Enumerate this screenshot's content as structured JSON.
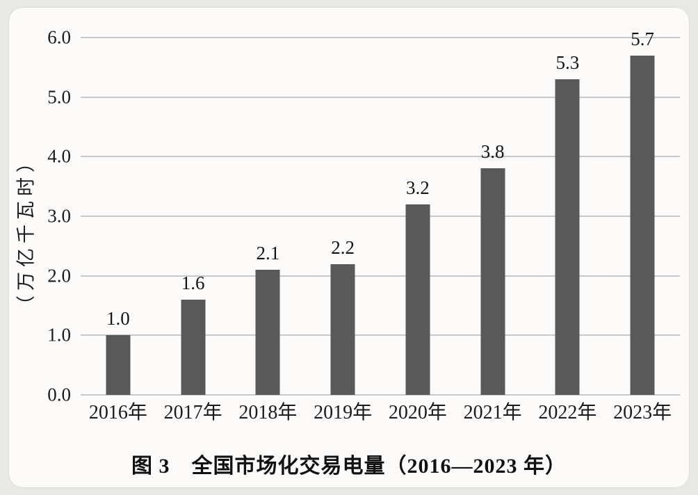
{
  "page": {
    "outer_background": "#e8e8e6",
    "card_background": "#fcfbfa"
  },
  "chart_data": {
    "type": "bar",
    "title": "图 3　全国市场化交易电量（2016—2023 年）",
    "xlabel": "",
    "ylabel": "（万亿千瓦时）",
    "categories": [
      "2016年",
      "2017年",
      "2018年",
      "2019年",
      "2020年",
      "2021年",
      "2022年",
      "2023年"
    ],
    "values": [
      1.0,
      1.6,
      2.1,
      2.2,
      3.2,
      3.8,
      5.3,
      5.7
    ],
    "value_labels": [
      "1.0",
      "1.6",
      "2.1",
      "2.2",
      "3.2",
      "3.8",
      "5.3",
      "5.7"
    ],
    "yticks": [
      0.0,
      1.0,
      2.0,
      3.0,
      4.0,
      5.0,
      6.0
    ],
    "ytick_labels": [
      "0.0",
      "1.0",
      "2.0",
      "3.0",
      "4.0",
      "5.0",
      "6.0"
    ],
    "ylim": [
      0,
      6.0
    ],
    "grid": "horizontal",
    "legend_position": "none",
    "bar_color": "#595959",
    "gridline_color": "#c8c8c8",
    "text_color": "#1b1b1b"
  }
}
